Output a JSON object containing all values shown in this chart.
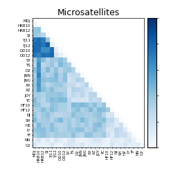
{
  "title": "Microsatellites",
  "labels": [
    "MDJ",
    "HRB10",
    "HRB12",
    "SJ",
    "YJ11",
    "YJ12",
    "DD10",
    "DD12",
    "SY",
    "TS",
    "D2",
    "JNN",
    "JNG",
    "XX",
    "XZ",
    "JOY",
    "YC",
    "HF10",
    "HF12",
    "NJ",
    "SH",
    "HZ",
    "LY",
    "YF",
    "NN",
    "G2"
  ],
  "vmin": 0,
  "vmax": 1,
  "title_fontsize": 9,
  "tick_fontsize": 4.0,
  "colorbar_tick_fontsize": 4
}
